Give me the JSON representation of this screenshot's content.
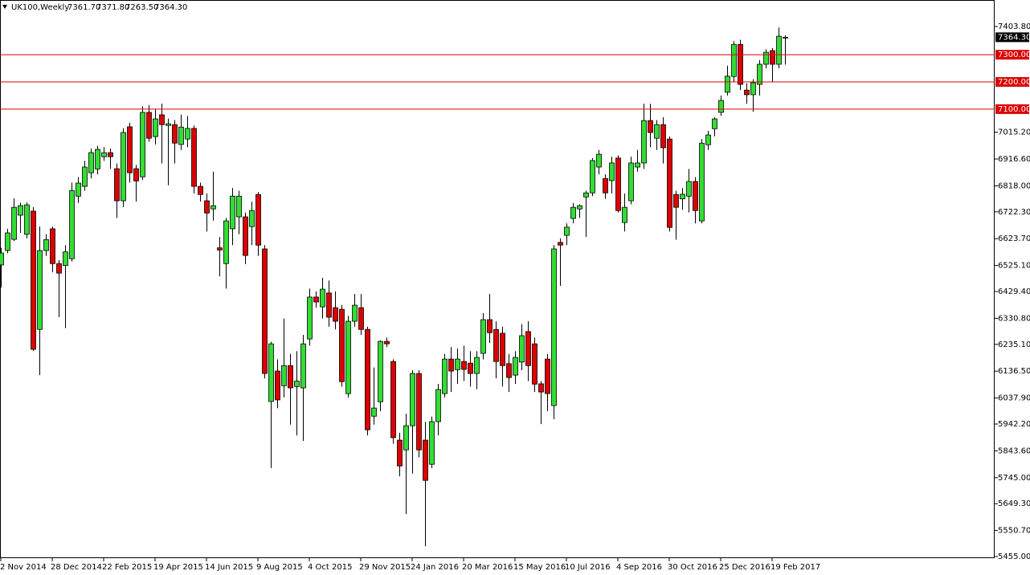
{
  "chart_data": {
    "type": "candlestick",
    "title": "UK100,Weekly",
    "header_values": [
      "7361.70",
      "7371.80",
      "7263.50",
      "7364.30"
    ],
    "categories": [
      "2 Nov 2014",
      null,
      null,
      null,
      null,
      null,
      null,
      null,
      "28 Dec 2014",
      null,
      null,
      null,
      null,
      null,
      null,
      null,
      "22 Feb 2015",
      null,
      null,
      null,
      null,
      null,
      null,
      null,
      "19 Apr 2015",
      null,
      null,
      null,
      null,
      null,
      null,
      null,
      "14 Jun 2015",
      null,
      null,
      null,
      null,
      null,
      null,
      null,
      "9 Aug 2015",
      null,
      null,
      null,
      null,
      null,
      null,
      null,
      "4 Oct 2015",
      null,
      null,
      null,
      null,
      null,
      null,
      null,
      "29 Nov 2015",
      null,
      null,
      null,
      null,
      null,
      null,
      null,
      "24 Jan 2016",
      null,
      null,
      null,
      null,
      null,
      null,
      null,
      "20 Mar 2016",
      null,
      null,
      null,
      null,
      null,
      null,
      null,
      "15 May 2016",
      null,
      null,
      null,
      null,
      null,
      null,
      null,
      "10 Jul 2016",
      null,
      null,
      null,
      null,
      null,
      null,
      null,
      "4 Sep 2016",
      null,
      null,
      null,
      null,
      null,
      null,
      null,
      "30 Oct 2016",
      null,
      null,
      null,
      null,
      null,
      null,
      null,
      "25 Dec 2016",
      null,
      null,
      null,
      null,
      null,
      null,
      null,
      "19 Feb 2017",
      null,
      null
    ],
    "open": [
      6527,
      6580,
      6621,
      6710,
      6640,
      6725,
      6290,
      6580,
      6660,
      6532,
      6525,
      6550,
      6780,
      6816,
      6866,
      6880,
      6925,
      6940,
      6881,
      6763,
      7035,
      6881,
      6851,
      7088,
      6999,
      7079,
      7040,
      7043,
      6970,
      6990,
      7029,
      6816,
      6763,
      6733,
      6590,
      6532,
      6660,
      6704,
      6704,
      6668,
      6786,
      6586,
      6025,
      6137,
      6083,
      6157,
      6080,
      6075,
      6255,
      6409,
      6373,
      6424,
      6370,
      6364,
      6054,
      6320,
      6370,
      6290,
      5971,
      6024,
      6246,
      6172,
      5883,
      5847,
      5936,
      6128,
      5883,
      5794,
      5951,
      6054,
      6181,
      6142,
      6172,
      6166,
      6128,
      6202,
      6326,
      6290,
      6276,
      6164,
      6122,
      6170,
      6282,
      6237,
      6090,
      6181,
      6010,
      6610,
      6636,
      6698,
      6733,
      6777,
      6792,
      6887,
      6845,
      6837,
      6920,
      6683,
      6763,
      6887,
      6902,
      7058,
      6993,
      7043,
      6990,
      6786,
      6770,
      6780,
      6834,
      6689,
      6969,
      7028,
      7088,
      7162,
      7220,
      7338,
      7170,
      7153,
      7191,
      7265,
      7315,
      7265,
      7361.7
    ],
    "high": [
      6590,
      6660,
      6772,
      6756,
      6757,
      6740,
      6669,
      6640,
      6668,
      6545,
      6600,
      6830,
      6850,
      6910,
      6955,
      6965,
      6960,
      6955,
      6900,
      7030,
      7050,
      6895,
      7110,
      7115,
      7100,
      7120,
      7065,
      7060,
      7080,
      7075,
      7040,
      6830,
      6790,
      6870,
      6630,
      6700,
      6810,
      6800,
      6720,
      6760,
      6795,
      6600,
      6245,
      6180,
      6330,
      6200,
      6210,
      6270,
      6440,
      6430,
      6480,
      6470,
      6430,
      6380,
      6340,
      6420,
      6420,
      6300,
      6150,
      6250,
      6260,
      6180,
      5910,
      5980,
      6140,
      6140,
      5950,
      5970,
      6090,
      6200,
      6225,
      6220,
      6230,
      6210,
      6210,
      6350,
      6420,
      6320,
      6300,
      6200,
      6210,
      6310,
      6320,
      6260,
      6100,
      6200,
      6600,
      6625,
      6680,
      6755,
      6750,
      6800,
      6920,
      6950,
      6860,
      6925,
      6930,
      6790,
      6925,
      6950,
      7120,
      7120,
      7060,
      7070,
      7000,
      6800,
      6810,
      6880,
      6850,
      6990,
      7020,
      7070,
      7150,
      7260,
      7350,
      7355,
      7195,
      7210,
      7280,
      7320,
      7325,
      7400,
      7371.8
    ],
    "low": [
      6444,
      6570,
      6615,
      6645,
      6625,
      6210,
      6122,
      6560,
      6500,
      6335,
      6295,
      6540,
      6755,
      6800,
      6845,
      6860,
      6910,
      6880,
      6700,
      6740,
      6830,
      6760,
      6840,
      6980,
      6970,
      6900,
      6820,
      6900,
      6950,
      6960,
      6790,
      6760,
      6650,
      6690,
      6485,
      6440,
      6600,
      6640,
      6530,
      6600,
      6560,
      6110,
      5780,
      6000,
      6040,
      5940,
      5900,
      5880,
      6230,
      6370,
      6330,
      6300,
      6290,
      6080,
      6040,
      6300,
      6270,
      5900,
      5940,
      5990,
      6225,
      5870,
      5750,
      5611,
      5760,
      5820,
      5493,
      5780,
      5900,
      6040,
      6060,
      6090,
      6100,
      6080,
      6070,
      6180,
      6240,
      6110,
      6080,
      6060,
      6090,
      6140,
      6100,
      6060,
      5942,
      5990,
      5960,
      6450,
      6600,
      6680,
      6700,
      6630,
      6780,
      6860,
      6770,
      6790,
      6720,
      6650,
      6750,
      6870,
      6880,
      6960,
      6950,
      6900,
      6650,
      6620,
      6730,
      6720,
      6680,
      6680,
      6950,
      7000,
      7075,
      7150,
      7200,
      7170,
      7120,
      7090,
      7150,
      7250,
      7200,
      7250,
      7263.5
    ],
    "close": [
      6571,
      6645,
      6739,
      6745,
      6748,
      6217,
      6580,
      6620,
      6532,
      6497,
      6575,
      6801,
      6828,
      6887,
      6940,
      6952,
      6940,
      6925,
      6763,
      7014,
      6866,
      6836,
      7088,
      6993,
      7064,
      7043,
      7046,
      6975,
      7034,
      7029,
      6816,
      6786,
      6718,
      6745,
      6582,
      6689,
      6780,
      6780,
      6562,
      6727,
      6600,
      6128,
      6237,
      6031,
      6157,
      6075,
      6100,
      6237,
      6409,
      6391,
      6438,
      6335,
      6320,
      6098,
      6320,
      6379,
      6290,
      5921,
      6001,
      6246,
      6237,
      5892,
      5788,
      5936,
      6128,
      5847,
      5735,
      5951,
      6069,
      6181,
      6137,
      6181,
      6143,
      6128,
      6187,
      6326,
      6278,
      6172,
      6157,
      6113,
      6187,
      6267,
      6157,
      6089,
      6060,
      6054,
      6586,
      6600,
      6666,
      6739,
      6745,
      6792,
      6911,
      6934,
      6792,
      6902,
      6727,
      6739,
      6902,
      6902,
      7058,
      7014,
      7043,
      6958,
      6665,
      6739,
      6787,
      6834,
      6727,
      6975,
      7005,
      7064,
      7132,
      7221,
      7338,
      7191,
      7153,
      7197,
      7265,
      7309,
      7265,
      7368,
      7364.3
    ],
    "up_color": "#33dd33",
    "down_color": "#dd0000",
    "ylim": [
      5449.1,
      7498.3
    ],
    "yticks": [
      {
        "value": 7403.8,
        "label": "7403.80"
      },
      {
        "value": 7015.2,
        "label": "7015.20"
      },
      {
        "value": 6916.6,
        "label": "6916.60"
      },
      {
        "value": 6818.0,
        "label": "6818.00"
      },
      {
        "value": 6722.3,
        "label": "6722.30"
      },
      {
        "value": 6623.7,
        "label": "6623.70"
      },
      {
        "value": 6525.1,
        "label": "6525.10"
      },
      {
        "value": 6429.4,
        "label": "6429.40"
      },
      {
        "value": 6330.8,
        "label": "6330.80"
      },
      {
        "value": 6235.1,
        "label": "6235.10"
      },
      {
        "value": 6136.5,
        "label": "6136.50"
      },
      {
        "value": 6037.9,
        "label": "6037.90"
      },
      {
        "value": 5942.2,
        "label": "5942.20"
      },
      {
        "value": 5843.6,
        "label": "5843.60"
      },
      {
        "value": 5745.0,
        "label": "5745.00"
      },
      {
        "value": 5649.3,
        "label": "5649.30"
      },
      {
        "value": 5550.7,
        "label": "5550.70"
      },
      {
        "value": 5455.0,
        "label": "5455.00"
      }
    ],
    "hlines": [
      {
        "value": 7300,
        "label": "7300.00"
      },
      {
        "value": 7200,
        "label": "7200.00"
      },
      {
        "value": 7100,
        "label": "7100.00"
      }
    ],
    "hline_color": "#dd0000",
    "last_price": {
      "value": 7364.3,
      "label": "7364.30"
    }
  }
}
